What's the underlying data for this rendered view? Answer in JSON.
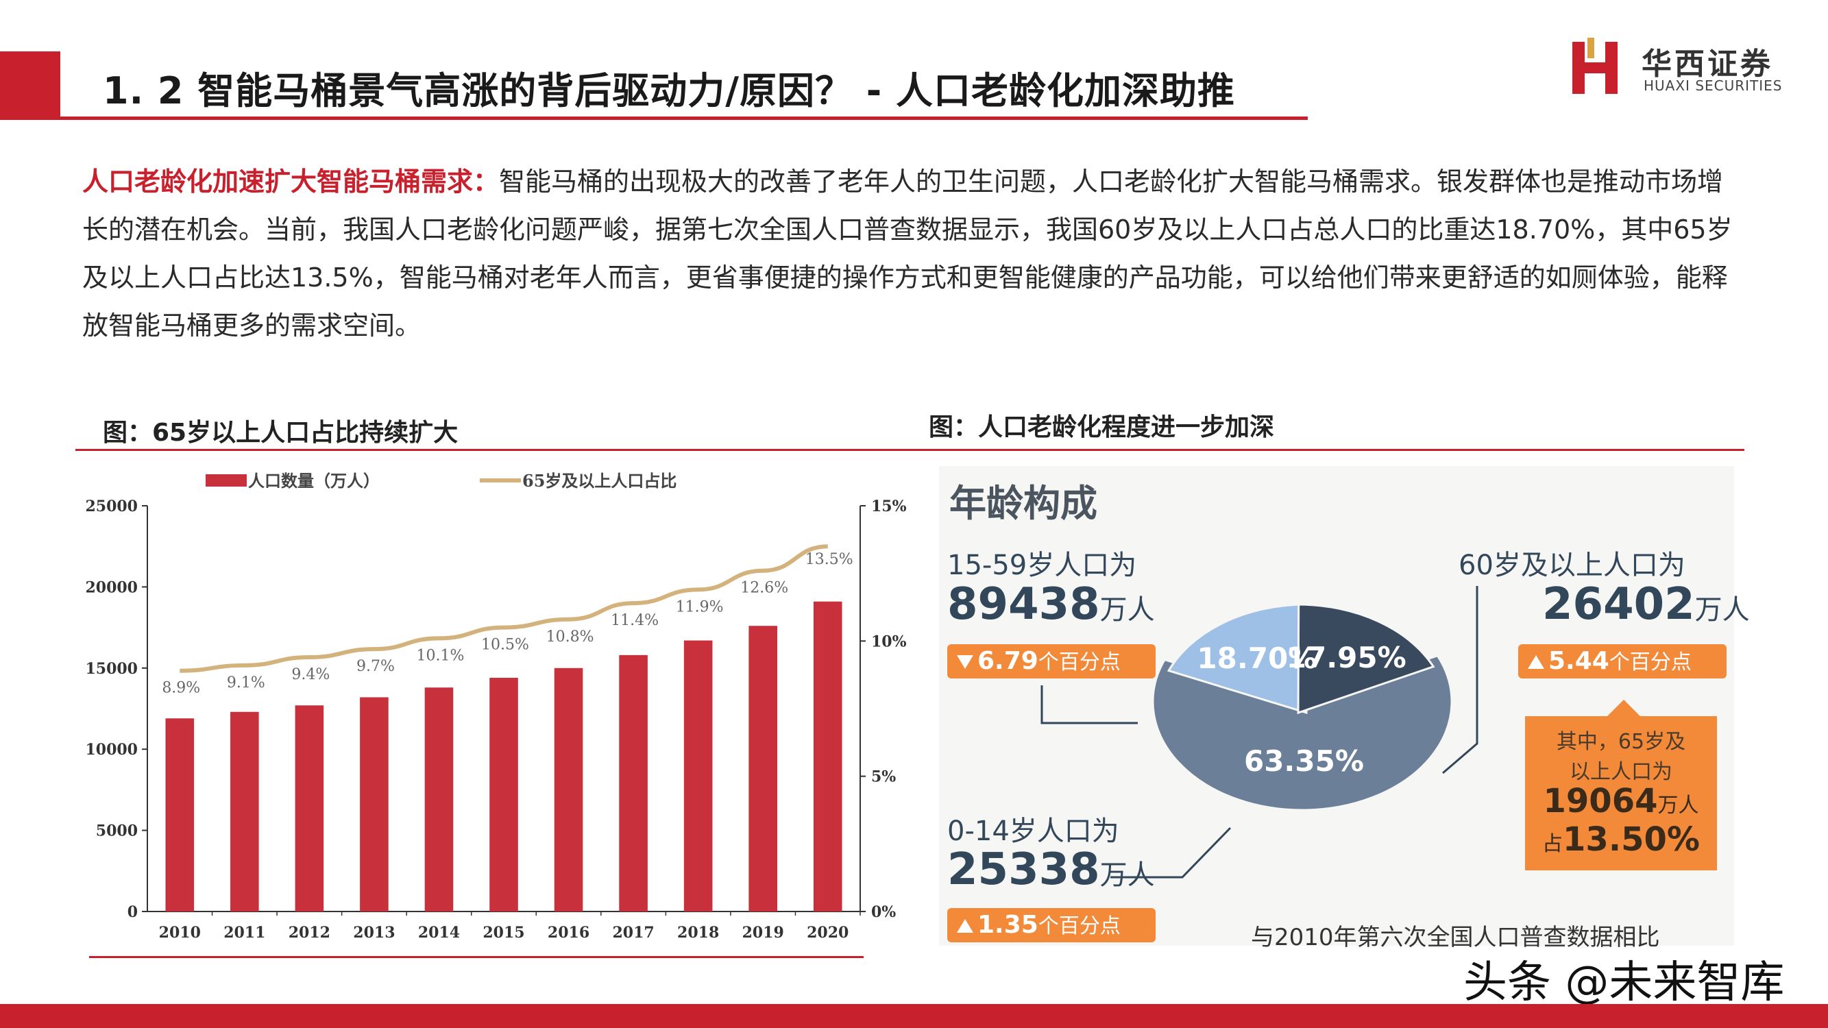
{
  "header": {
    "title": "1. 2 智能马桶景气高涨的背后驱动力/原因？ - 人口老龄化加深助推",
    "logo_cn": "华西证券",
    "logo_en": "HUAXI SECURITIES"
  },
  "paragraph": {
    "highlight": "人口老龄化加速扩大智能马桶需求：",
    "body": "智能马桶的出现极大的改善了老年人的卫生问题，人口老龄化扩大智能马桶需求。银发群体也是推动市场增长的潜在机会。当前，我国人口老龄化问题严峻，据第七次全国人口普查数据显示，我国60岁及以上人口占总人口的比重达18.70%，其中65岁及以上人口占比达13.5%，智能马桶对老年人而言，更省事便捷的操作方式和更智能健康的产品功能，可以给他们带来更舒适的如厕体验，能释放智能马桶更多的需求空间。"
  },
  "figures": {
    "left_title": "图：65岁以上人口占比持续扩大",
    "right_title": "图：人口老龄化程度进一步加深"
  },
  "chart_data": [
    {
      "type": "bar",
      "title": "",
      "categories": [
        "2010",
        "2011",
        "2012",
        "2013",
        "2014",
        "2015",
        "2016",
        "2017",
        "2018",
        "2019",
        "2020"
      ],
      "series": [
        {
          "name": "人口数量（万人）",
          "type": "bar",
          "axis": "left",
          "values": [
            11900,
            12300,
            12700,
            13200,
            13800,
            14400,
            15000,
            15800,
            16700,
            17600,
            19100
          ]
        },
        {
          "name": "65岁及以上人口占比",
          "type": "line",
          "axis": "right",
          "values": [
            8.9,
            9.1,
            9.4,
            9.7,
            10.1,
            10.5,
            10.8,
            11.4,
            11.9,
            12.6,
            13.5
          ],
          "labels": [
            "8.9%",
            "9.1%",
            "9.4%",
            "9.7%",
            "10.1%",
            "10.5%",
            "10.8%",
            "11.4%",
            "11.9%",
            "12.6%",
            "13.5%"
          ]
        }
      ],
      "y_left": {
        "range": [
          0,
          25000
        ],
        "ticks": [
          "0",
          "5000",
          "10000",
          "15000",
          "20000",
          "25000"
        ]
      },
      "y_right": {
        "range": [
          0,
          15
        ],
        "ticks": [
          "0%",
          "5%",
          "10%",
          "15%"
        ]
      },
      "colors": {
        "bar": "#c8313b",
        "line": "#d4b27c"
      },
      "legend": "top",
      "grid": false
    },
    {
      "type": "pie",
      "title": "年龄构成",
      "slices": [
        {
          "label": "15-59岁",
          "value": 63.35,
          "text": "63.35%",
          "color": "#6b7f99"
        },
        {
          "label": "60岁及以上",
          "value": 18.7,
          "text": "18.70%",
          "color": "#9fc0e6"
        },
        {
          "label": "0-14岁",
          "value": 17.95,
          "text": "17.95%",
          "color": "#3a4a5e"
        }
      ],
      "callouts": {
        "a_label": "15-59岁人口为",
        "a_value": "89438",
        "a_unit": "万人",
        "a_change": "6.79",
        "a_change_unit": "个百分点",
        "b_label": "60岁及以上人口为",
        "b_value": "26402",
        "b_unit": "万人",
        "b_change": "5.44",
        "b_change_unit": "个百分点",
        "c_label": "0-14岁人口为",
        "c_value": "25338",
        "c_unit": "万人",
        "c_change": "1.35",
        "c_change_unit": "个百分点",
        "sub_line1": "其中，65岁及",
        "sub_line2": "以上人口为",
        "sub_value": "19064",
        "sub_unit": "万人",
        "sub_prefix": "占",
        "sub_pct": "13.50%"
      },
      "footnote": "与2010年第六次全国人口普查数据相比"
    }
  ],
  "watermark": "头条 @未来智库"
}
